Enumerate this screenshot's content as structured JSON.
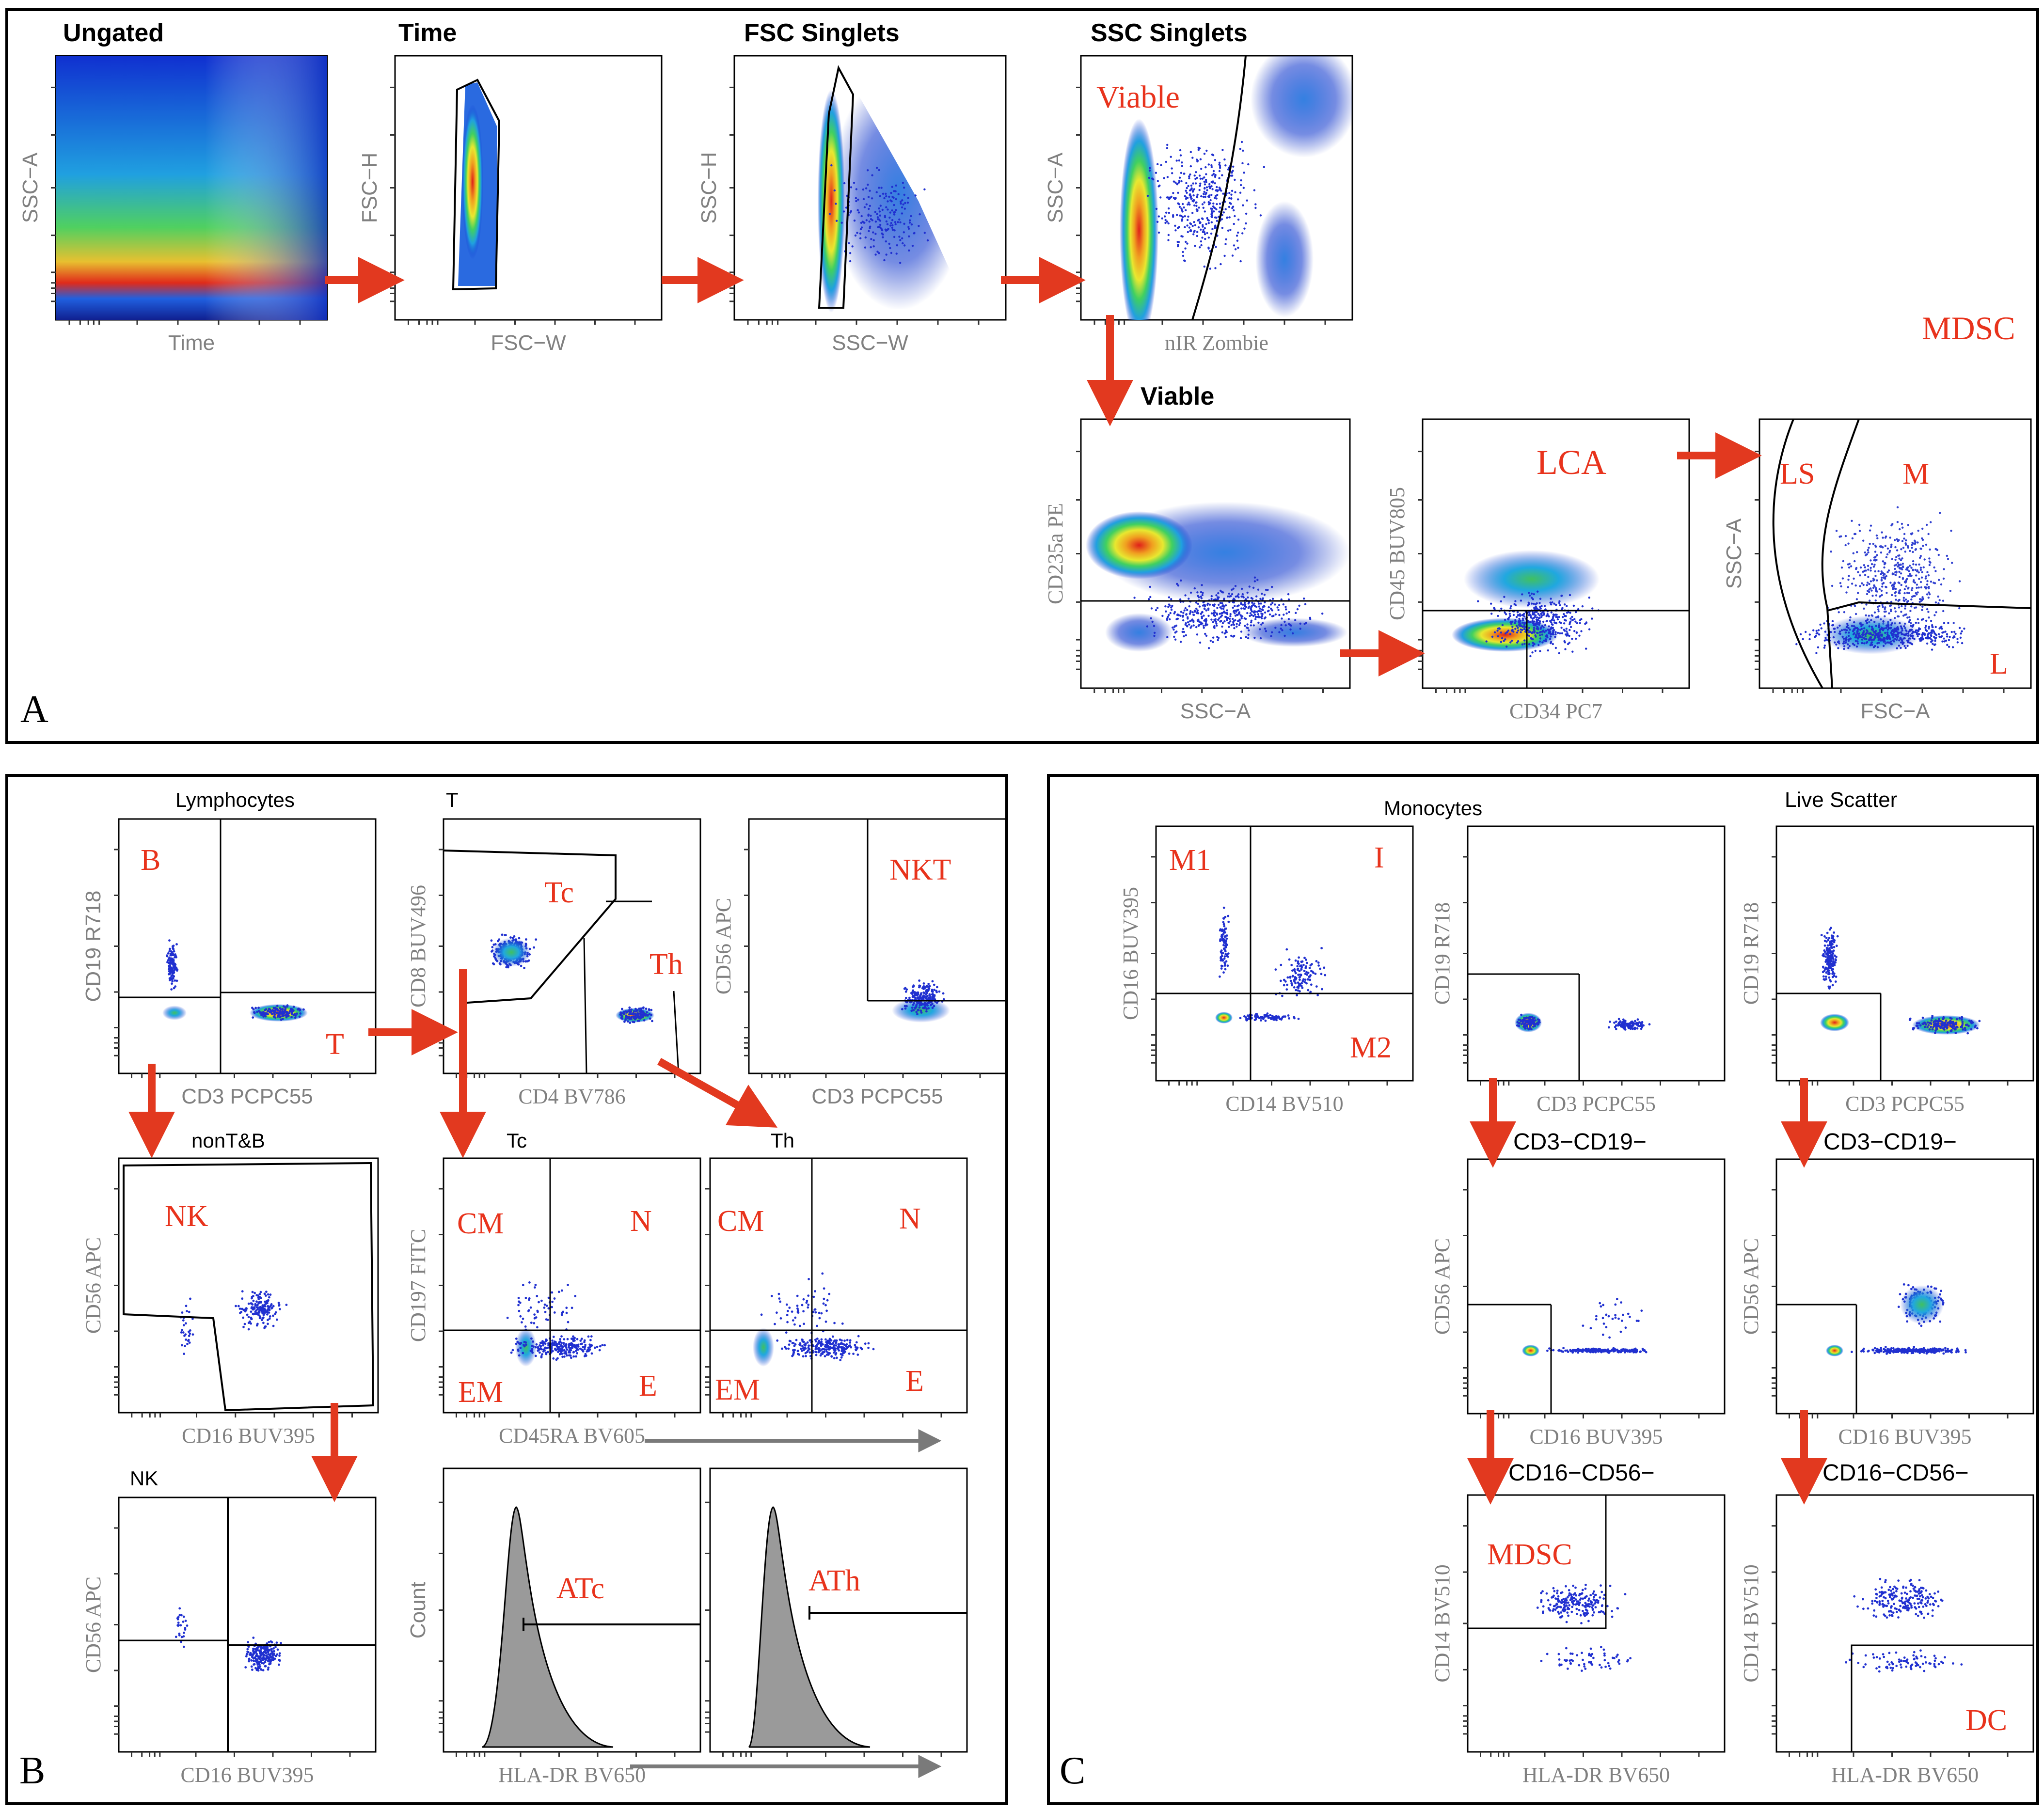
{
  "panels": {
    "A": {
      "letter": "A",
      "section_label": "MDSC"
    },
    "B": {
      "letter": "B"
    },
    "C": {
      "letter": "C"
    }
  },
  "colors": {
    "gate_label": "#e8331c",
    "arrow": "#e2391f",
    "axis_text": "#808080",
    "frame": "#000000",
    "histogram_fill": "#9a9a9a"
  },
  "plots": [
    {
      "id": "a-ungated",
      "title": "Ungated",
      "xlabel": "Time",
      "ylabel": "SSC−A",
      "gates": [],
      "kind": "density"
    },
    {
      "id": "a-time",
      "title": "Time",
      "xlabel": "FSC−W",
      "ylabel": "FSC−H",
      "gates": [],
      "kind": "density"
    },
    {
      "id": "a-fsc-singlets",
      "title": "FSC Singlets",
      "xlabel": "SSC−W",
      "ylabel": "SSC−H",
      "gates": [],
      "kind": "density"
    },
    {
      "id": "a-ssc-singlets",
      "title": "SSC Singlets",
      "xlabel": "nIR Zombie",
      "ylabel": "SSC−A",
      "gates": [
        "Viable"
      ],
      "kind": "density"
    },
    {
      "id": "a-viable",
      "title": "Viable",
      "xlabel": "SSC−A",
      "ylabel": "CD235a PE",
      "gates": [],
      "kind": "density"
    },
    {
      "id": "a-lca",
      "title": "",
      "xlabel": "CD34 PC7",
      "ylabel": "CD45 BUV805",
      "gates": [
        "LCA"
      ],
      "kind": "density"
    },
    {
      "id": "a-scatter",
      "title": "",
      "xlabel": "FSC−A",
      "ylabel": "SSC−A",
      "gates": [
        "LS",
        "M",
        "L"
      ],
      "kind": "dots"
    },
    {
      "id": "b-lymphocytes",
      "title": "Lymphocytes",
      "xlabel": "CD3 PCPC55",
      "ylabel": "CD19 R718",
      "gates": [
        "B",
        "T"
      ],
      "kind": "dots"
    },
    {
      "id": "b-t",
      "title": "T",
      "xlabel": "CD4 BV786",
      "ylabel": "CD8 BUV496",
      "gates": [
        "Tc",
        "Th"
      ],
      "kind": "dots"
    },
    {
      "id": "b-nkt",
      "title": "",
      "xlabel": "CD3 PCPC55",
      "ylabel": "CD56 APC",
      "gates": [
        "NKT"
      ],
      "kind": "dots"
    },
    {
      "id": "b-nontb",
      "title": "nonT&B",
      "xlabel": "CD16 BUV395",
      "ylabel": "CD56 APC",
      "gates": [
        "NK"
      ],
      "kind": "dots"
    },
    {
      "id": "b-tc",
      "title": "Tc",
      "xlabel": "CD45RA BV605",
      "ylabel": "CD197 FITC",
      "gates": [
        "CM",
        "N",
        "EM",
        "E"
      ],
      "kind": "dots"
    },
    {
      "id": "b-th",
      "title": "Th",
      "xlabel": "",
      "ylabel": "",
      "gates": [
        "CM",
        "N",
        "EM",
        "E"
      ],
      "kind": "dots"
    },
    {
      "id": "b-nk",
      "title": "NK",
      "xlabel": "CD16 BUV395",
      "ylabel": "CD56 APC",
      "gates": [],
      "kind": "dots"
    },
    {
      "id": "b-atc",
      "title": "",
      "xlabel": "HLA-DR BV650",
      "ylabel": "Count",
      "gates": [
        "ATc"
      ],
      "kind": "hist"
    },
    {
      "id": "b-ath",
      "title": "",
      "xlabel": "",
      "ylabel": "",
      "gates": [
        "ATh"
      ],
      "kind": "hist"
    },
    {
      "id": "c-monocytes",
      "title": "",
      "xlabel": "CD14 BV510",
      "ylabel": "CD16 BUV395",
      "gates": [
        "M1",
        "I",
        "M2"
      ],
      "kind": "dots"
    },
    {
      "id": "c-mono-cd3",
      "title": "Monocytes",
      "xlabel": "CD3 PCPC55",
      "ylabel": "CD19 R718",
      "gates": [],
      "kind": "dots"
    },
    {
      "id": "c-live-cd3",
      "title": "Live Scatter",
      "xlabel": "CD3 PCPC55",
      "ylabel": "CD19 R718",
      "gates": [],
      "kind": "dots"
    },
    {
      "id": "c-mono-cd16",
      "title": "CD3−CD19−",
      "xlabel": "CD16 BUV395",
      "ylabel": "CD56 APC",
      "gates": [],
      "kind": "dots"
    },
    {
      "id": "c-live-cd16",
      "title": "CD3−CD19−",
      "xlabel": "CD16 BUV395",
      "ylabel": "CD56 APC",
      "gates": [],
      "kind": "dots"
    },
    {
      "id": "c-mdsc",
      "title": "CD16−CD56−",
      "xlabel": "HLA-DR BV650",
      "ylabel": "CD14 BV510",
      "gates": [
        "MDSC"
      ],
      "kind": "dots"
    },
    {
      "id": "c-dc",
      "title": "CD16−CD56−",
      "xlabel": "HLA-DR BV650",
      "ylabel": "CD14 BV510",
      "gates": [
        "DC"
      ],
      "kind": "dots"
    }
  ]
}
